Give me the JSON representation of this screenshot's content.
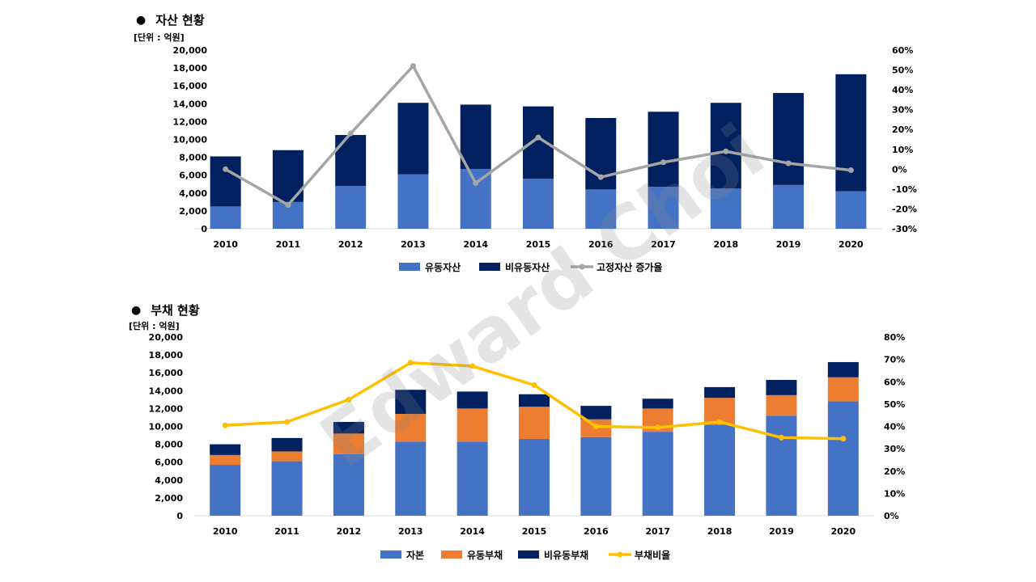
{
  "chart_data": [
    {
      "type": "bar",
      "title": "자산 현황",
      "marker": "●",
      "unit": "[단위 : 억원]",
      "categories": [
        "2010",
        "2011",
        "2012",
        "2013",
        "2014",
        "2015",
        "2016",
        "2017",
        "2018",
        "2019",
        "2020"
      ],
      "stacked": true,
      "y_left": {
        "lim": [
          0,
          20000
        ],
        "step": 2000
      },
      "y_right": {
        "lim": [
          -0.3,
          0.6
        ],
        "step": 0.1
      },
      "series": [
        {
          "name": "유동자산",
          "type": "bar",
          "axis": "left",
          "color": "#4472C4",
          "values": [
            2500,
            3000,
            4800,
            6100,
            6700,
            5600,
            4400,
            4700,
            4500,
            4900,
            4200
          ]
        },
        {
          "name": "비유동자산",
          "type": "bar",
          "axis": "left",
          "color": "#002060",
          "values": [
            5600,
            5800,
            5700,
            8000,
            7200,
            8100,
            8000,
            8400,
            9600,
            10300,
            13100
          ]
        },
        {
          "name": "고정자산 증가율",
          "type": "line",
          "axis": "right",
          "color": "#A5A5A5",
          "values": [
            0.0,
            -0.18,
            0.18,
            0.52,
            -0.07,
            0.16,
            -0.04,
            0.035,
            0.09,
            0.03,
            -0.005
          ]
        }
      ],
      "legend": "bottom"
    },
    {
      "type": "bar",
      "title": "부채 현황",
      "marker": "●",
      "unit": "[단위 : 억원]",
      "categories": [
        "2010",
        "2011",
        "2012",
        "2013",
        "2014",
        "2015",
        "2016",
        "2017",
        "2018",
        "2019",
        "2020"
      ],
      "stacked": true,
      "y_left": {
        "lim": [
          0,
          20000
        ],
        "step": 2000
      },
      "y_right": {
        "lim": [
          0,
          0.8
        ],
        "step": 0.1
      },
      "series": [
        {
          "name": "자본",
          "type": "bar",
          "axis": "left",
          "color": "#4472C4",
          "values": [
            5700,
            6100,
            6900,
            8300,
            8300,
            8600,
            8800,
            9400,
            10200,
            11200,
            12800
          ]
        },
        {
          "name": "유동부채",
          "type": "bar",
          "axis": "left",
          "color": "#ED7D31",
          "values": [
            1100,
            1100,
            2300,
            3100,
            3700,
            3600,
            2000,
            2600,
            3000,
            2300,
            2700
          ]
        },
        {
          "name": "비유동부채",
          "type": "bar",
          "axis": "left",
          "color": "#002060",
          "values": [
            1200,
            1500,
            1300,
            2700,
            1900,
            1400,
            1500,
            1100,
            1200,
            1700,
            1700
          ]
        },
        {
          "name": "부채비율",
          "type": "line",
          "axis": "right",
          "color": "#FFC000",
          "values": [
            0.405,
            0.42,
            0.52,
            0.685,
            0.67,
            0.585,
            0.4,
            0.395,
            0.42,
            0.35,
            0.345
          ]
        }
      ],
      "legend": "bottom"
    }
  ],
  "watermark": "Edward Choi"
}
